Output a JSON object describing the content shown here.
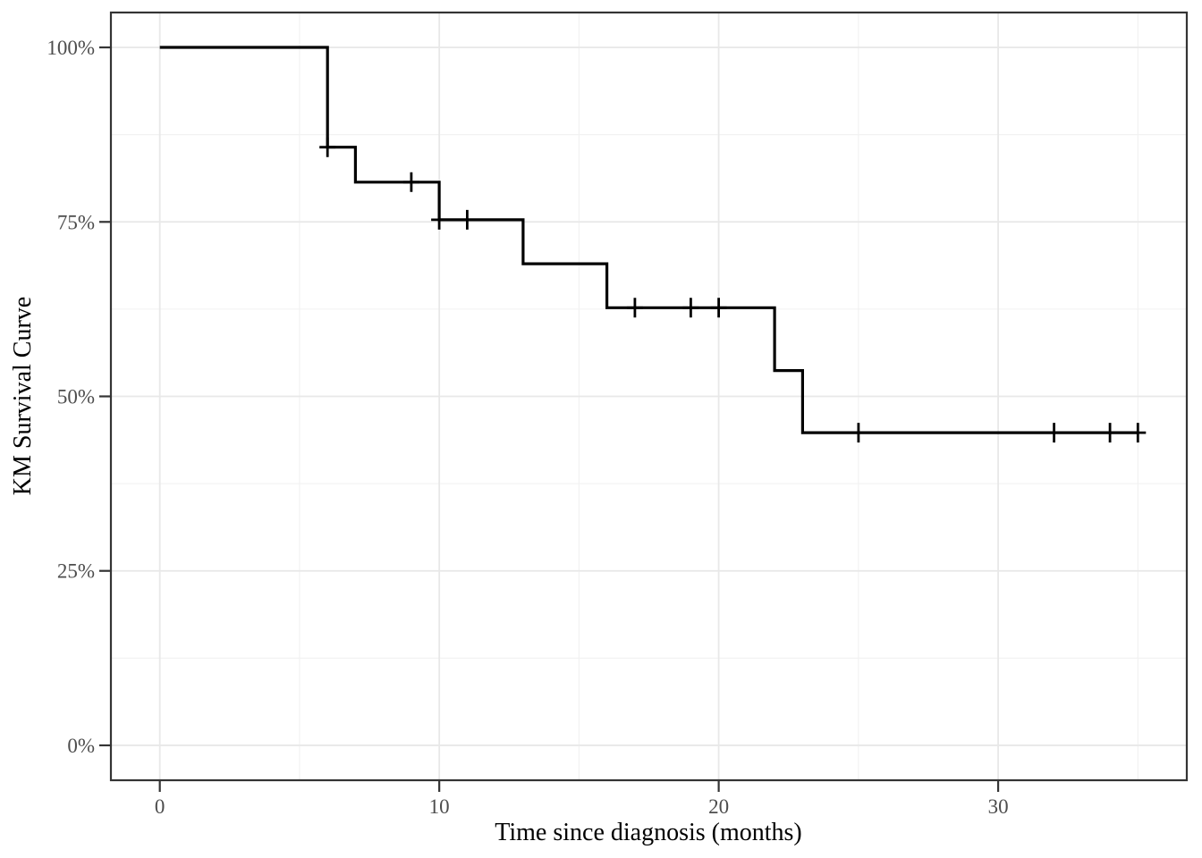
{
  "figure": {
    "background_color": "#ffffff",
    "panel_background": "#ffffff",
    "panel_border_color": "#343434",
    "grid_major_color": "#e8e8e8",
    "grid_minor_color": "#f1f1f1",
    "tick_color": "#343434",
    "tick_label_color": "#4d4d4d",
    "axis_title_color": "#000000"
  },
  "chart_data": {
    "type": "line",
    "subtype": "kaplan-meier-step",
    "title": "",
    "xlabel": "Time since diagnosis (months)",
    "ylabel": "KM Survival Curve",
    "xlim": [
      -1.75,
      36.75
    ],
    "ylim": [
      -5,
      105
    ],
    "grid": "on",
    "legend": "none",
    "line_color": "#000000",
    "line_width": 3.2,
    "censor_color": "#000000",
    "x_major_ticks": [
      {
        "value": 0,
        "label": "0"
      },
      {
        "value": 10,
        "label": "10"
      },
      {
        "value": 20,
        "label": "20"
      },
      {
        "value": 30,
        "label": "30"
      }
    ],
    "x_minor_ticks": [
      5,
      15,
      25,
      35
    ],
    "y_major_ticks": [
      {
        "value": 0,
        "label": "0%"
      },
      {
        "value": 25,
        "label": "25%"
      },
      {
        "value": 50,
        "label": "50%"
      },
      {
        "value": 75,
        "label": "75%"
      },
      {
        "value": 100,
        "label": "100%"
      }
    ],
    "y_minor_ticks": [
      12.5,
      37.5,
      62.5,
      87.5
    ],
    "survival_steps": [
      {
        "time": 0,
        "survival": 100.0
      },
      {
        "time": 6,
        "survival": 85.7
      },
      {
        "time": 7,
        "survival": 80.7
      },
      {
        "time": 10,
        "survival": 75.3
      },
      {
        "time": 13,
        "survival": 69.0
      },
      {
        "time": 16,
        "survival": 62.7
      },
      {
        "time": 22,
        "survival": 53.7
      },
      {
        "time": 23,
        "survival": 44.8
      }
    ],
    "end_time": 35,
    "censor_marks": [
      {
        "time": 6,
        "survival": 85.7
      },
      {
        "time": 9,
        "survival": 80.7
      },
      {
        "time": 10,
        "survival": 75.3
      },
      {
        "time": 11,
        "survival": 75.3
      },
      {
        "time": 17,
        "survival": 62.7
      },
      {
        "time": 19,
        "survival": 62.7
      },
      {
        "time": 20,
        "survival": 62.7
      },
      {
        "time": 25,
        "survival": 44.8
      },
      {
        "time": 32,
        "survival": 44.8
      },
      {
        "time": 34,
        "survival": 44.8
      },
      {
        "time": 35,
        "survival": 44.8
      }
    ]
  }
}
